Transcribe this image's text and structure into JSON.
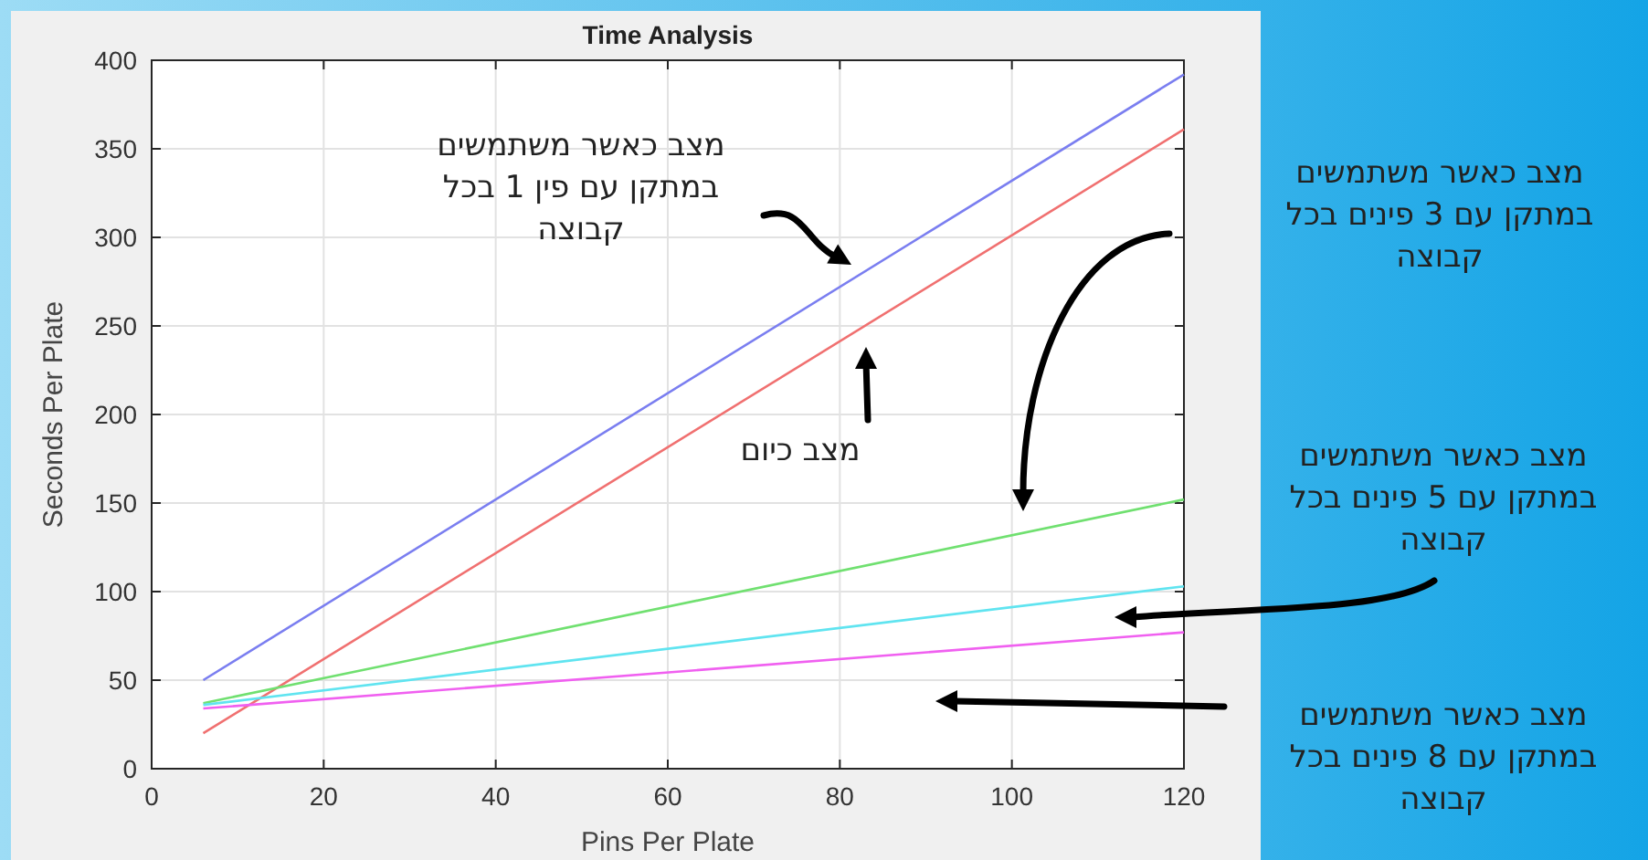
{
  "chart_data": {
    "type": "line",
    "title": "Time Analysis",
    "xlabel": "Pins Per Plate",
    "ylabel": "Seconds Per Plate",
    "xlim": [
      0,
      120
    ],
    "xticks": [
      0,
      20,
      40,
      60,
      80,
      100,
      120
    ],
    "ylim": [
      0,
      400
    ],
    "yticks": [
      0,
      50,
      100,
      150,
      200,
      250,
      300,
      350,
      400
    ],
    "grid": true,
    "marker": "none",
    "line_style": "solid",
    "x": [
      6,
      120
    ],
    "series": [
      {
        "color": "#7a7ef0",
        "values": [
          50,
          392
        ]
      },
      {
        "color": "#f07070",
        "values": [
          20,
          361
        ]
      },
      {
        "color": "#70e070",
        "values": [
          37,
          152
        ]
      },
      {
        "color": "#60e4f0",
        "values": [
          36,
          103
        ]
      },
      {
        "color": "#f060f0",
        "values": [
          34,
          77
        ]
      }
    ],
    "annotations": [
      "מצב כאשר משתמשים\nבמתקן עם פין 1 בכל\nקבוצה",
      "מצב כיום",
      "מצב כאשר משתמשים\nבמתקן עם 3 פינים בכל\nקבוצה",
      "מצב כאשר משתמשים\nבמתקן עם 5 פינים בכל\nקבוצה",
      "מצב כאשר משתמשים\nבמתקן עם 8 פינים בכל\nקבוצה"
    ]
  }
}
